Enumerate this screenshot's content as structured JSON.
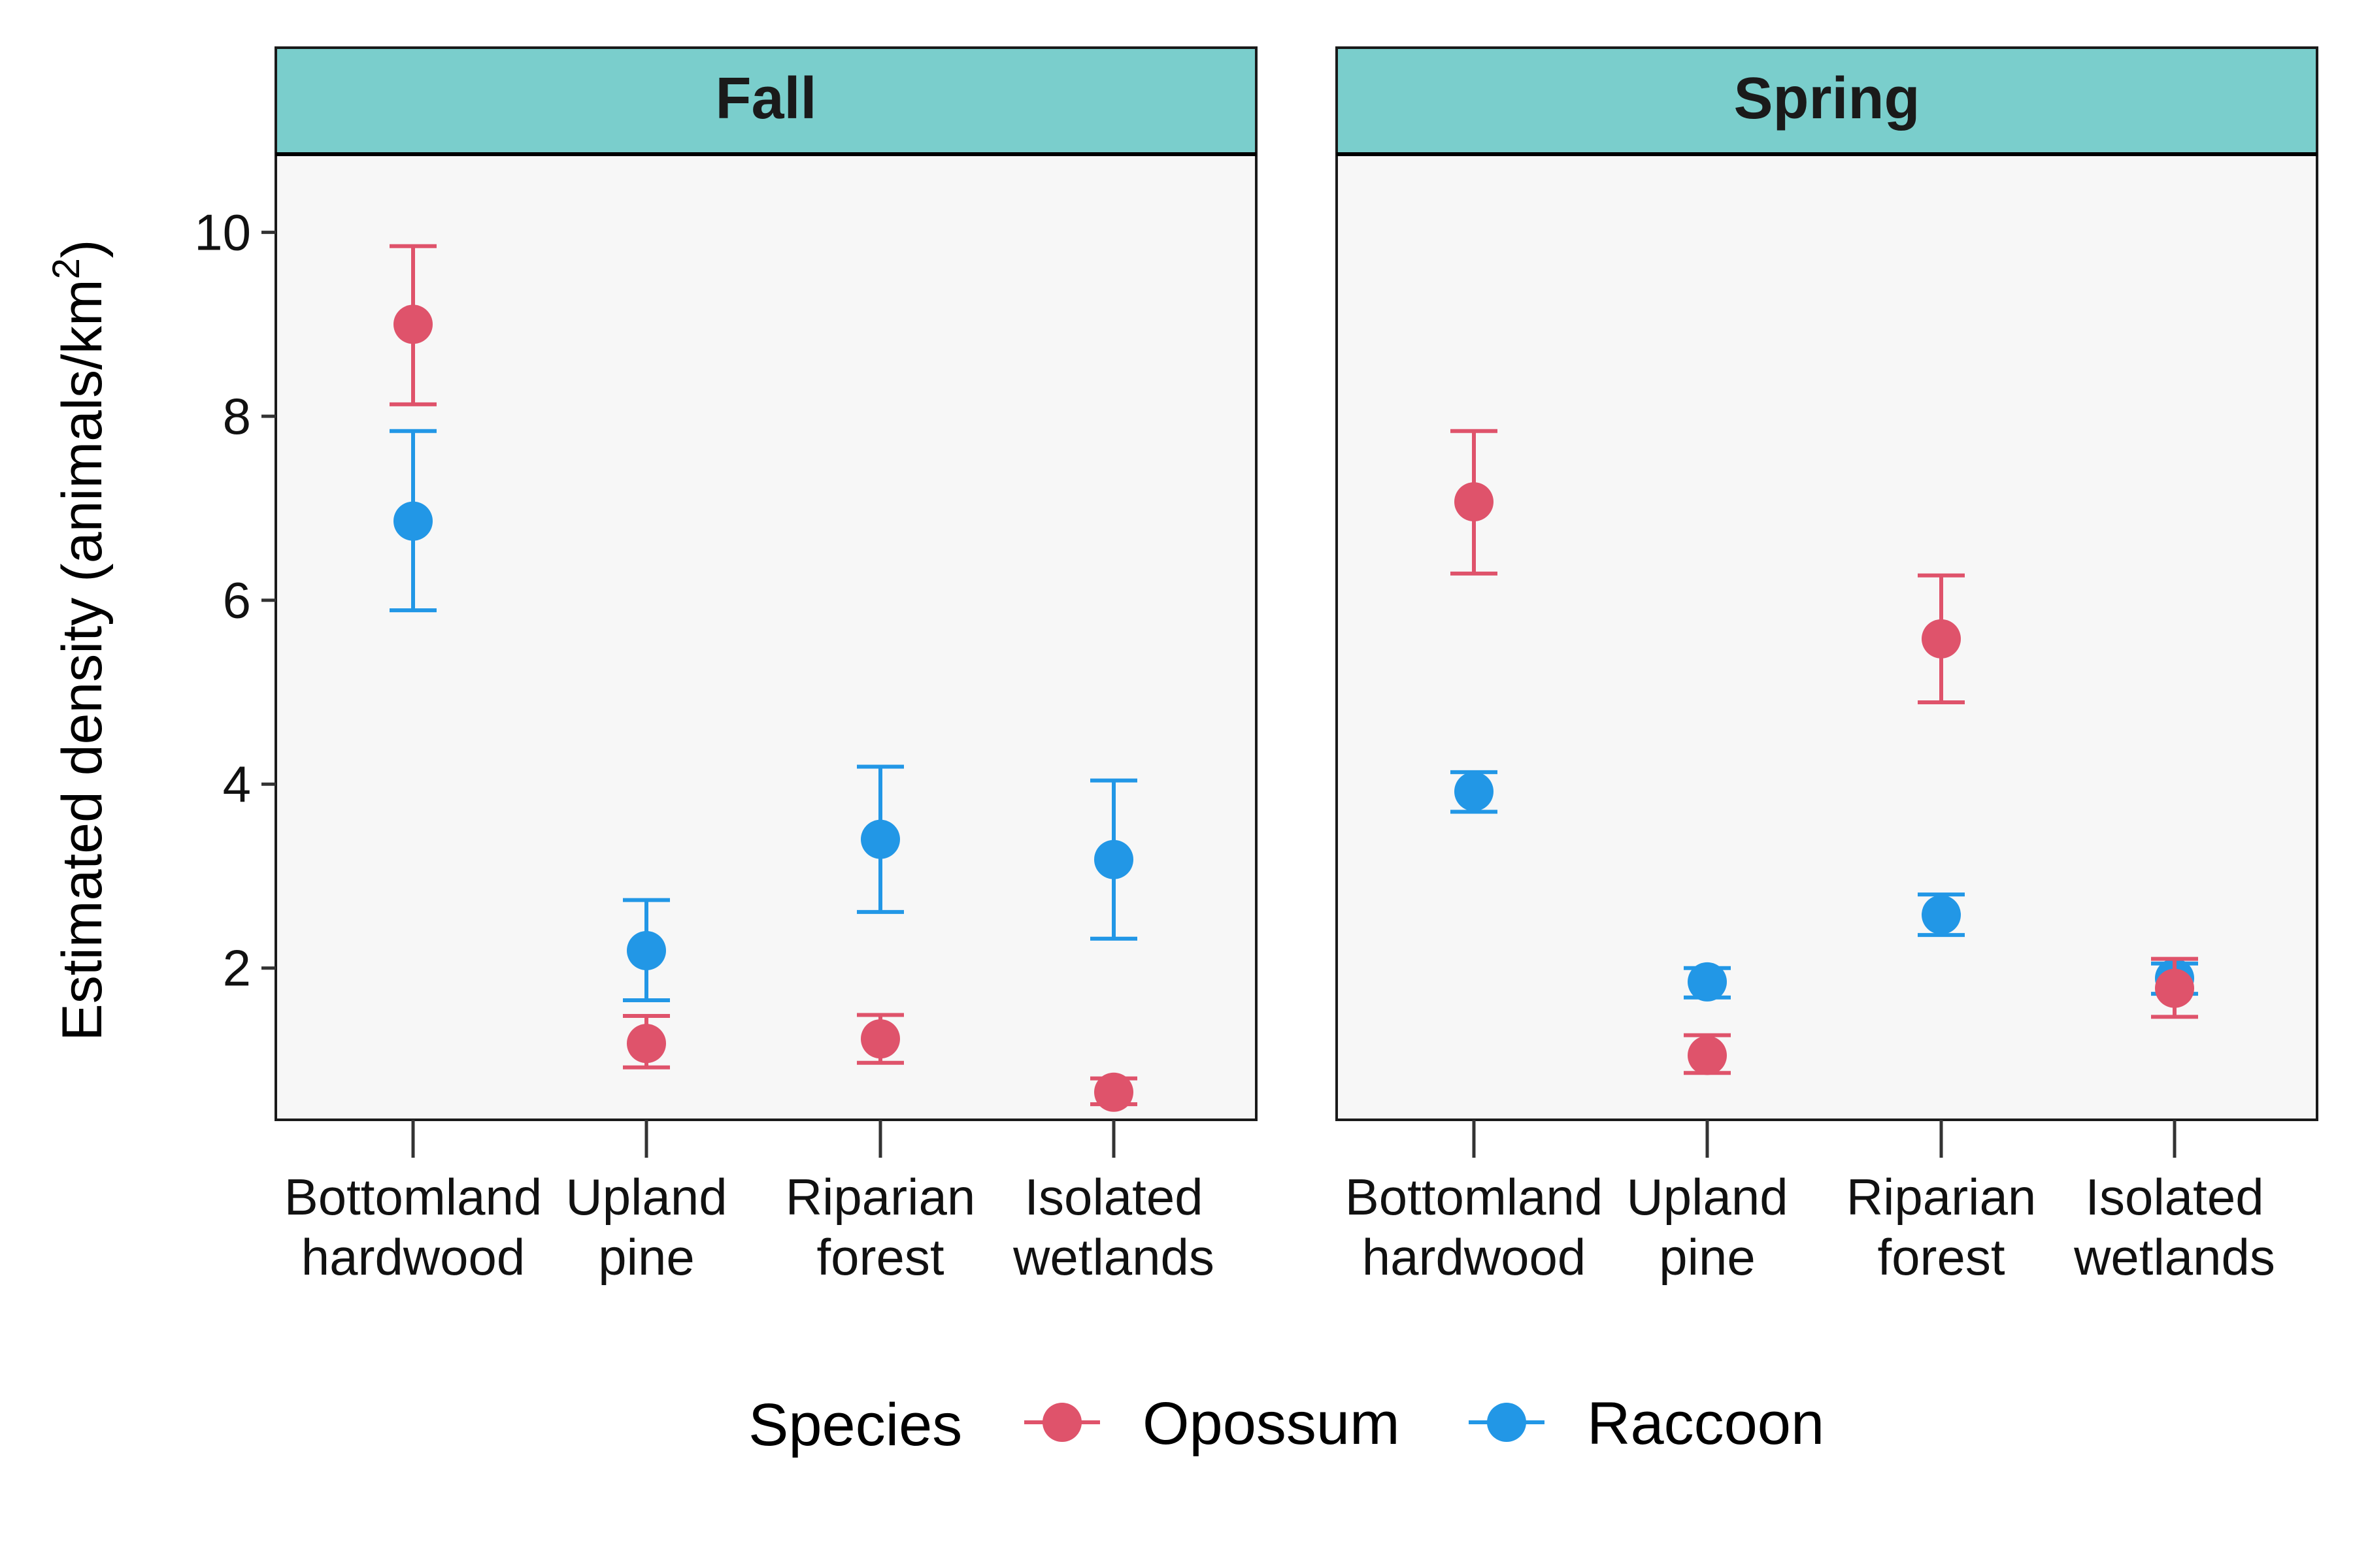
{
  "chart_data": {
    "type": "scatter",
    "ylabel": "Estimated density  (animals/km",
    "ylabel_superscript": "2",
    "ylabel_close": ")",
    "yticks": [
      2,
      4,
      6,
      8,
      10
    ],
    "ylim": [
      0.35,
      10.85
    ],
    "categories": [
      [
        "Bottomland",
        "hardwood"
      ],
      [
        "Upland",
        "pine"
      ],
      [
        "Riparian",
        "forest"
      ],
      [
        "Isolated",
        "wetlands"
      ]
    ],
    "legend": {
      "title": "Species",
      "position": "bottom"
    },
    "series": [
      {
        "name": "Opossum",
        "color": "#DF536B"
      },
      {
        "name": "Raccoon",
        "color": "#2297E6"
      }
    ],
    "panels": [
      {
        "title": "Fall",
        "data": {
          "Opossum": [
            {
              "y": 9.0,
              "lo": 8.13,
              "hi": 9.85
            },
            {
              "y": 1.18,
              "lo": 0.92,
              "hi": 1.48
            },
            {
              "y": 1.23,
              "lo": 0.97,
              "hi": 1.49
            },
            {
              "y": 0.65,
              "lo": 0.52,
              "hi": 0.8
            }
          ],
          "Raccoon": [
            {
              "y": 6.86,
              "lo": 5.89,
              "hi": 7.84
            },
            {
              "y": 2.19,
              "lo": 1.65,
              "hi": 2.74
            },
            {
              "y": 3.4,
              "lo": 2.61,
              "hi": 4.19
            },
            {
              "y": 3.18,
              "lo": 2.32,
              "hi": 4.04
            }
          ]
        }
      },
      {
        "title": "Spring",
        "data": {
          "Opossum": [
            {
              "y": 7.07,
              "lo": 6.29,
              "hi": 7.84
            },
            {
              "y": 1.05,
              "lo": 0.86,
              "hi": 1.27
            },
            {
              "y": 5.58,
              "lo": 4.89,
              "hi": 6.27
            },
            {
              "y": 1.78,
              "lo": 1.47,
              "hi": 2.1
            }
          ],
          "Raccoon": [
            {
              "y": 3.92,
              "lo": 3.7,
              "hi": 4.13
            },
            {
              "y": 1.85,
              "lo": 1.68,
              "hi": 2.0
            },
            {
              "y": 2.58,
              "lo": 2.36,
              "hi": 2.8
            },
            {
              "y": 1.89,
              "lo": 1.72,
              "hi": 2.05
            }
          ]
        }
      }
    ],
    "strip_color": "#7ACECC",
    "panel_background": "#F7F7F7",
    "grid": false
  }
}
